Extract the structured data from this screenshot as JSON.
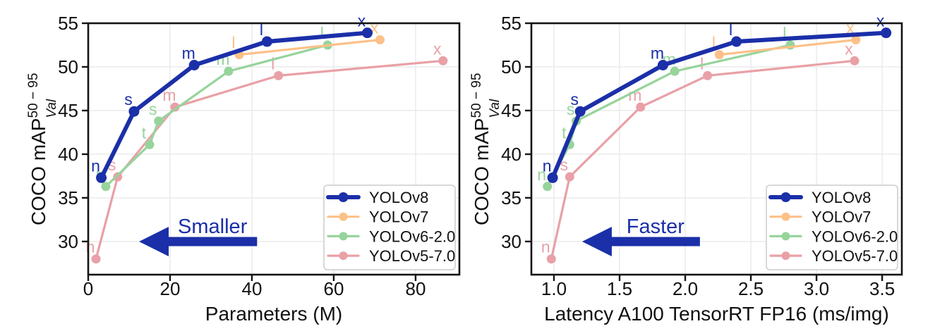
{
  "figure": {
    "background": "#ffffff",
    "colors": {
      "accent_blue": "#1b2fa8",
      "grid": "#e9e9e9",
      "spine": "#141414",
      "text": "#111111",
      "legend_border": "#cccccc",
      "legend_bg": "#ffffff"
    }
  },
  "chart_data": {
    "type": "line",
    "title": "",
    "ylabel": {
      "text": "COCO mAP",
      "sup": "50 − 95",
      "sub": "Val"
    },
    "ylim": [
      26.2,
      55
    ],
    "yticks": [
      30,
      35,
      40,
      45,
      50,
      55
    ],
    "ytick_labels": [
      "30",
      "35",
      "40",
      "45",
      "50",
      "55"
    ],
    "grid": true,
    "legend_entries": [
      "YOLOv8",
      "YOLOv7",
      "YOLOv6-2.0",
      "YOLOv5-7.0"
    ],
    "charts": [
      {
        "id": "parameters",
        "xlabel": "Parameters (M)",
        "x_key": "params",
        "xlim": [
          0,
          90.7
        ],
        "xticks": [
          0,
          20,
          40,
          60,
          80
        ],
        "xtick_labels": [
          "0",
          "20",
          "40",
          "60",
          "80"
        ],
        "annotation": "Smaller",
        "legend_position": "lower right"
      },
      {
        "id": "latency",
        "xlabel": "Latency A100 TensorRT FP16 (ms/img)",
        "x_key": "latency",
        "xlim": [
          0.828,
          3.65
        ],
        "xticks": [
          1.0,
          1.5,
          2.0,
          2.5,
          3.0,
          3.5
        ],
        "xtick_labels": [
          "1.0",
          "1.5",
          "2.0",
          "2.5",
          "3.0",
          "3.5"
        ],
        "annotation": "Faster",
        "legend_position": "lower right"
      }
    ],
    "series": [
      {
        "name": "YOLOv8",
        "color": "#1b2fa8",
        "line_width": 6,
        "marker_radius": 7.5,
        "labels": [
          "n",
          "s",
          "m",
          "l",
          "x"
        ],
        "params": [
          3.2,
          11.2,
          25.9,
          43.7,
          68.2
        ],
        "latency": [
          0.99,
          1.2,
          1.83,
          2.39,
          3.53
        ],
        "map": [
          37.3,
          44.9,
          50.2,
          52.9,
          53.9
        ]
      },
      {
        "name": "YOLOv7",
        "color": "#fdc088",
        "line_width": 3.2,
        "marker_radius": 6.5,
        "labels": [
          "l",
          "x"
        ],
        "params": [
          36.9,
          71.3
        ],
        "latency": [
          2.26,
          3.3
        ],
        "map": [
          51.4,
          53.1
        ]
      },
      {
        "name": "YOLOv6-2.0",
        "color": "#96d49b",
        "line_width": 3.2,
        "marker_radius": 6.5,
        "labels": [
          "n",
          "t",
          "s",
          "m",
          "l"
        ],
        "params": [
          4.3,
          15.0,
          17.2,
          34.3,
          58.5
        ],
        "latency": [
          0.95,
          1.12,
          1.17,
          1.92,
          2.8
        ],
        "map": [
          36.3,
          41.1,
          43.8,
          49.5,
          52.5
        ]
      },
      {
        "name": "YOLOv5-7.0",
        "color": "#e9a0a6",
        "line_width": 3.2,
        "marker_radius": 6.5,
        "labels": [
          "n",
          "s",
          "m",
          "l",
          "x"
        ],
        "params": [
          1.9,
          7.2,
          21.2,
          46.5,
          86.7
        ],
        "latency": [
          0.98,
          1.12,
          1.66,
          2.17,
          3.29
        ],
        "map": [
          28.0,
          37.4,
          45.4,
          49.0,
          50.7
        ]
      }
    ]
  }
}
